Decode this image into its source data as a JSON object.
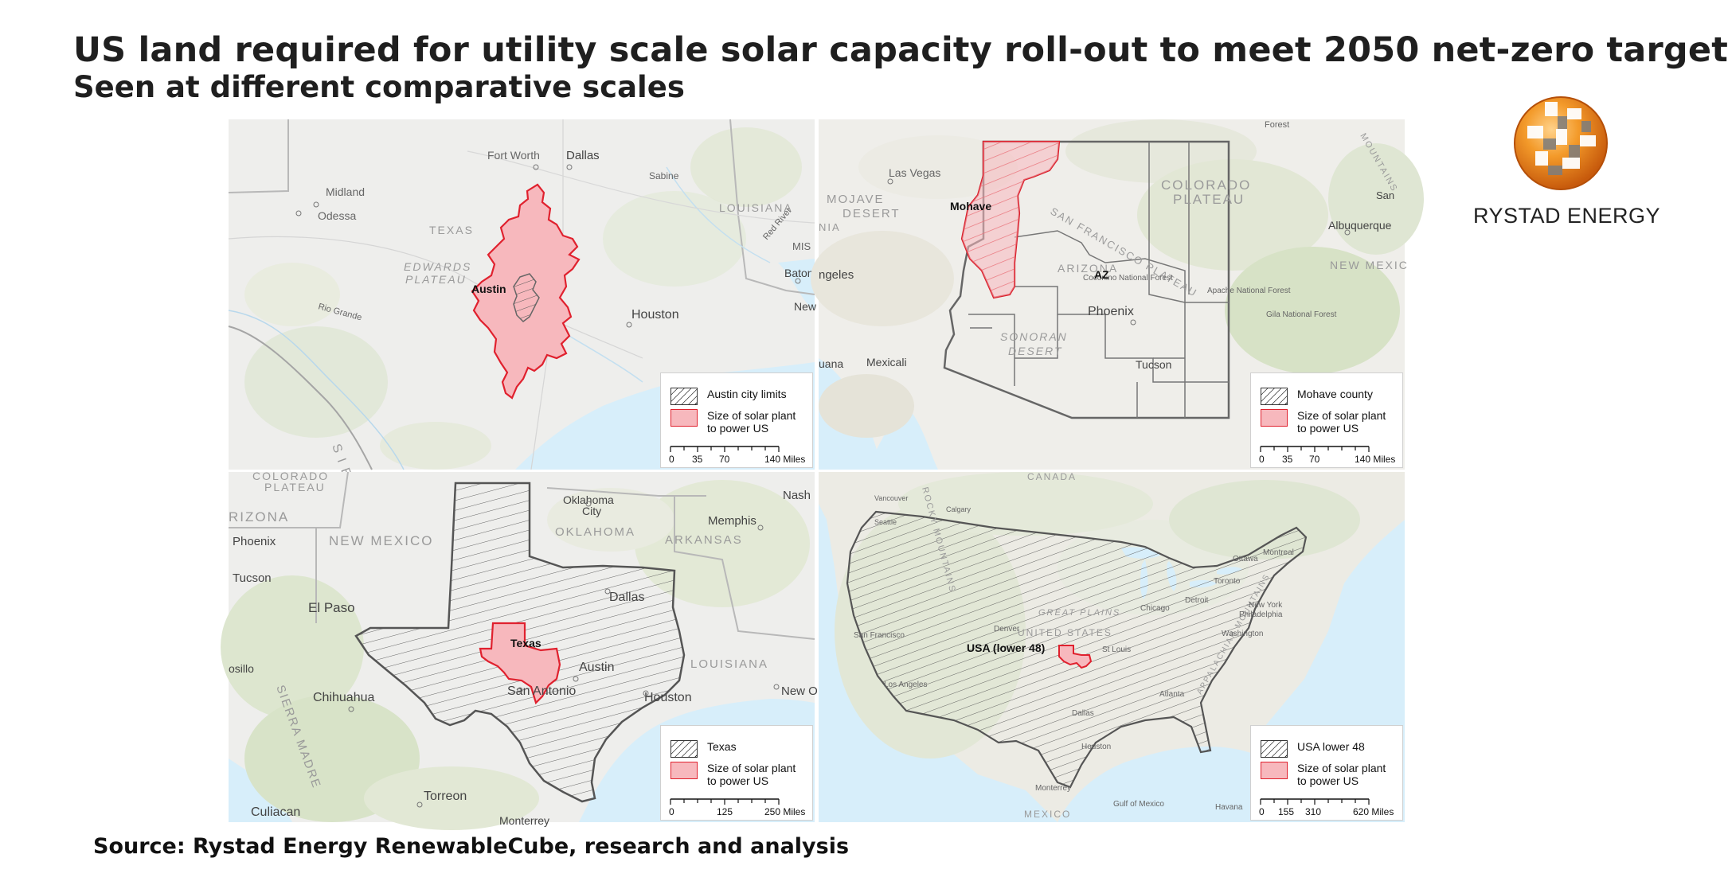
{
  "title": "US land required for utility scale solar capacity roll-out to meet 2050 net-zero target",
  "subtitle": "Seen at different comparative scales",
  "source": "Source: Rystad Energy RenewableCube, research and analysis",
  "logo": {
    "name": "RYSTAD ENERGY",
    "icon": "rystad-globe-icon"
  },
  "colors": {
    "solar_fill": "#f7b8bd",
    "solar_outline": "#e0212e",
    "hatch": "#333333",
    "water": "#d7eefa"
  },
  "panels": {
    "austin": {
      "legend": {
        "boundary": "Austin city limits",
        "solar_line1": "Size of solar plant",
        "solar_line2": "to power US",
        "scale": [
          "0",
          "35",
          "70",
          "140 Miles"
        ]
      },
      "labels": {
        "fort_worth": "Fort Worth",
        "dallas": "Dallas",
        "midland": "Midland",
        "odessa": "Odessa",
        "texas": "TEXAS",
        "edwards1": "EDWARDS",
        "edwards2": "PLATEAU",
        "louisiana": "LOUISIANA",
        "baton": "Baton",
        "houston": "Houston",
        "new": "New",
        "rio_grande": "Rio Grande",
        "red_river": "Red River",
        "sabine": "Sabine",
        "mis": "MIS",
        "sie": "S I E",
        "highlight": "Austin"
      }
    },
    "mohave": {
      "legend": {
        "boundary": "Mohave county",
        "solar_line1": "Size of solar plant",
        "solar_line2": "to power US",
        "scale": [
          "0",
          "35",
          "70",
          "140 Miles"
        ]
      },
      "labels": {
        "las_vegas": "Las Vegas",
        "mojave1": "MOJAVE",
        "mojave2": "DESERT",
        "nia": "NIA",
        "angeles": "ngeles",
        "colorado1": "COLORADO",
        "colorado2": "PLATEAU",
        "sanfran": "SAN FRANCISCO PLATEAU",
        "albuquerque": "Albuquerque",
        "newmex": "NEW MEXIC",
        "san": "San",
        "az": "AZ",
        "arizona": "ARIZONA",
        "phoenix": "Phoenix",
        "sonoran1": "SONORAN",
        "sonoran2": "DESERT",
        "mexicali": "Mexicali",
        "tijuana": "uana",
        "tucson": "Tucson",
        "forest": "Forest",
        "mountains": "MOUNTAINS",
        "apache": "Apache National Forest",
        "gila": "Gila National Forest",
        "kaibab": "Coconino National Forest",
        "highlight": "Mohave"
      }
    },
    "texas": {
      "legend": {
        "boundary": "Texas",
        "solar_line1": "Size of solar plant",
        "solar_line2": "to power US",
        "scale": [
          "0",
          "125",
          "250 Miles"
        ]
      },
      "labels": {
        "colorado": "COLORADO",
        "plateau": "PLATEAU",
        "arizona": "RIZONA",
        "phoenix": "Phoenix",
        "newmexico": "NEW MEXICO",
        "tucson": "Tucson",
        "elpaso": "El Paso",
        "oklahoma_city1": "Oklahoma",
        "oklahoma_city2": "City",
        "oklahoma": "OKLAHOMA",
        "memphis": "Memphis",
        "arkansas": "ARKANSAS",
        "nash": "Nash",
        "dallas": "Dallas",
        "austin": "Austin",
        "sanantonio": "San Antonio",
        "houston": "Houston",
        "louisiana": "LOUISIANA",
        "neworleans": "New O",
        "chihuahua": "Chihuahua",
        "torreon": "Torreon",
        "culiacan": "Culiacan",
        "sierra": "SIERRA MADRE",
        "osillo": "osillo",
        "monterrey": "Monterrey",
        "highlight": "Texas"
      }
    },
    "usa": {
      "legend": {
        "boundary": "USA lower 48",
        "solar_line1": "Size of solar plant",
        "solar_line2": "to power US",
        "scale": [
          "0",
          "155",
          "310",
          "620 Miles"
        ]
      },
      "labels": {
        "canada": "CANADA",
        "mexico": "MEXICO",
        "rocky": "ROCKY MOUNTAINS",
        "great_plains": "GREAT PLAINS",
        "united_states": "UNITED STATES",
        "appalachian": "APPALACHIAN MOUNTAINS",
        "san_francisco": "San Francisco",
        "los_angeles": "Los Angeles",
        "denver": "Denver",
        "dallas": "Dallas",
        "houston": "Houston",
        "monterrey": "Monterrey",
        "st_louis": "St Louis",
        "chicago": "Chicago",
        "detroit": "Detroit",
        "toronto": "Toronto",
        "ottawa": "Ottawa",
        "montreal": "Montreal",
        "new_york": "New York",
        "philadelphia": "Philadelphia",
        "washington": "Washington",
        "atlanta": "Atlanta",
        "havana": "Havana",
        "calgary": "Calgary",
        "vancouver": "Vancouver",
        "seattle": "Seattle",
        "gulf": "Gulf of Mexico",
        "highlight": "USA (lower 48)"
      }
    }
  }
}
